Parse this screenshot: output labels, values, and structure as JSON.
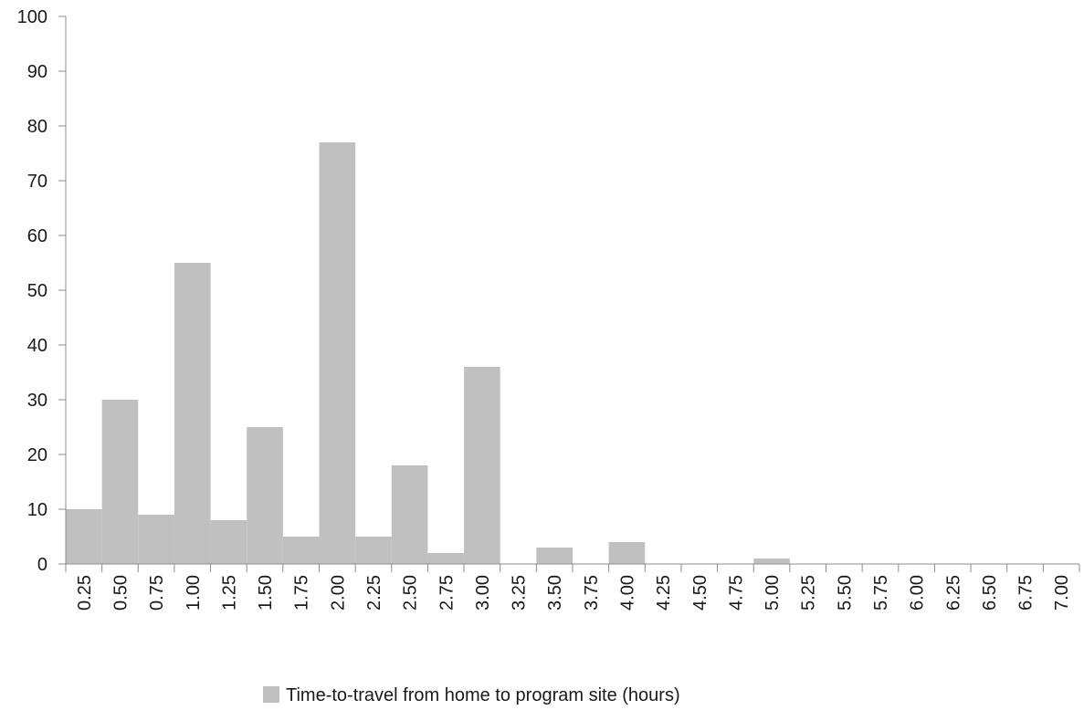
{
  "chart_data": {
    "type": "bar",
    "categories": [
      "0.25",
      "0.50",
      "0.75",
      "1.00",
      "1.25",
      "1.50",
      "1.75",
      "2.00",
      "2.25",
      "2.50",
      "2.75",
      "3.00",
      "3.25",
      "3.50",
      "3.75",
      "4.00",
      "4.25",
      "4.50",
      "4.75",
      "5.00",
      "5.25",
      "5.50",
      "5.75",
      "6.00",
      "6.25",
      "6.50",
      "6.75",
      "7.00"
    ],
    "series": [
      {
        "name": "Time-to-travel from home to program site (hours)",
        "values": [
          10,
          30,
          9,
          55,
          8,
          25,
          5,
          77,
          5,
          18,
          2,
          36,
          0,
          3,
          0,
          4,
          0,
          0,
          0,
          1,
          0,
          0,
          0,
          0,
          0,
          0,
          0,
          0
        ]
      }
    ],
    "title": "",
    "xlabel": "",
    "ylabel": "",
    "ylim": [
      0,
      100
    ],
    "yticks": [
      0,
      10,
      20,
      30,
      40,
      50,
      60,
      70,
      80,
      90,
      100
    ],
    "grid": false,
    "legend_position": "bottom",
    "colors": {
      "bar": "#c0c0c0",
      "axis": "#8c8c8c",
      "text": "#1a1a1a"
    }
  }
}
